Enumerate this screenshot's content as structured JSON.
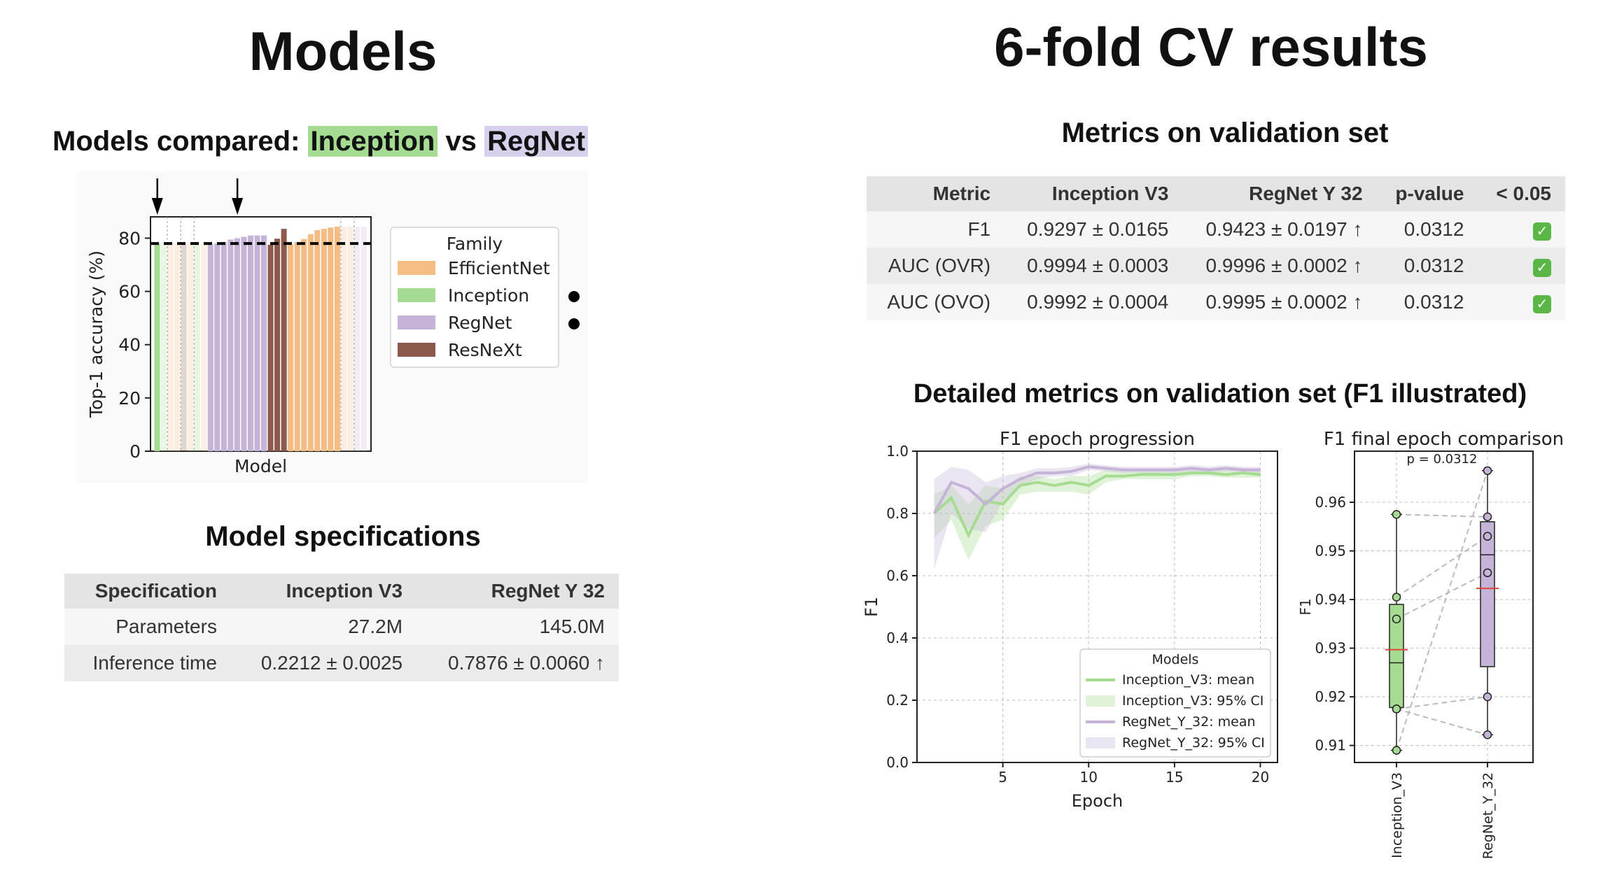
{
  "left": {
    "title": "Models",
    "compared": {
      "prefix": "Models compared:",
      "model_a": "Inception",
      "sep": "vs",
      "model_b": "RegNet"
    },
    "spec_title": "Model specifications",
    "spec_table": {
      "headers": [
        "Specification",
        "Inception V3",
        "RegNet Y 32"
      ],
      "rows": [
        [
          "Parameters",
          "27.2M",
          "145.0M"
        ],
        [
          "Inference time",
          "0.2212 ± 0.0025",
          "0.7876 ± 0.0060 ↑"
        ]
      ]
    }
  },
  "right": {
    "title": "6-fold CV results",
    "metrics_title": "Metrics on validation set",
    "metrics_table": {
      "headers": [
        "Metric",
        "Inception V3",
        "RegNet Y 32",
        "p-value",
        "< 0.05"
      ],
      "rows": [
        [
          "F1",
          "0.9297 ± 0.0165",
          "0.9423 ± 0.0197 ↑",
          "0.0312",
          "✓"
        ],
        [
          "AUC (OVR)",
          "0.9994 ± 0.0003",
          "0.9996 ± 0.0002 ↑",
          "0.0312",
          "✓"
        ],
        [
          "AUC (OVO)",
          "0.9992 ± 0.0004",
          "0.9995 ± 0.0002 ↑",
          "0.0312",
          "✓"
        ]
      ]
    },
    "detail_title": "Detailed metrics on validation set (F1 illustrated)"
  },
  "colors": {
    "EfficientNet": "#f5bd83",
    "Inception": "#a5dc92",
    "RegNet": "#c6b4d8",
    "ResNeXt": "#8c5a4c",
    "check_green": "#5ab645"
  },
  "chart_data": [
    {
      "type": "bar",
      "xlabel": "Model",
      "ylabel": "Top-1 accuracy (%)",
      "ylim": [
        0,
        88
      ],
      "yticks": [
        0,
        20,
        40,
        60,
        80
      ],
      "reference_line": 78,
      "legend": {
        "title": "Family",
        "entries": [
          "EfficientNet",
          "Inception",
          "RegNet",
          "ResNeXt"
        ],
        "placement": "right"
      },
      "bars": [
        {
          "family": "Inception",
          "value": 78,
          "faded": false
        },
        {
          "family": "Inception",
          "value": 78,
          "faded": true
        },
        {
          "family": "EfficientNet",
          "value": 78,
          "faded": true
        },
        {
          "family": "EfficientNet",
          "value": 78,
          "faded": true
        },
        {
          "family": "ResNeXt",
          "value": 78,
          "faded": true
        },
        {
          "family": "EfficientNet",
          "value": 78,
          "faded": true
        },
        {
          "family": "Inception",
          "value": 78,
          "faded": true
        },
        {
          "family": "EfficientNet",
          "value": 78,
          "faded": true
        },
        {
          "family": "RegNet",
          "value": 77.5,
          "faded": false
        },
        {
          "family": "RegNet",
          "value": 78,
          "faded": false
        },
        {
          "family": "RegNet",
          "value": 78.5,
          "faded": false
        },
        {
          "family": "RegNet",
          "value": 79.5,
          "faded": false
        },
        {
          "family": "RegNet",
          "value": 80,
          "faded": false
        },
        {
          "family": "RegNet",
          "value": 80.5,
          "faded": false
        },
        {
          "family": "RegNet",
          "value": 81,
          "faded": false
        },
        {
          "family": "RegNet",
          "value": 81,
          "faded": false
        },
        {
          "family": "RegNet",
          "value": 81,
          "faded": false
        },
        {
          "family": "ResNeXt",
          "value": 77.5,
          "faded": false
        },
        {
          "family": "ResNeXt",
          "value": 79.8,
          "faded": false
        },
        {
          "family": "ResNeXt",
          "value": 83.5,
          "faded": false
        },
        {
          "family": "EfficientNet",
          "value": 77.5,
          "faded": false
        },
        {
          "family": "EfficientNet",
          "value": 78.5,
          "faded": false
        },
        {
          "family": "EfficientNet",
          "value": 79.7,
          "faded": false
        },
        {
          "family": "EfficientNet",
          "value": 81.5,
          "faded": false
        },
        {
          "family": "EfficientNet",
          "value": 83,
          "faded": false
        },
        {
          "family": "EfficientNet",
          "value": 83.5,
          "faded": false
        },
        {
          "family": "EfficientNet",
          "value": 84,
          "faded": false
        },
        {
          "family": "EfficientNet",
          "value": 84.3,
          "faded": false
        },
        {
          "family": "EfficientNet",
          "value": 84.3,
          "faded": true
        },
        {
          "family": "EfficientNet",
          "value": 84.3,
          "faded": true
        },
        {
          "family": "RegNet",
          "value": 84.3,
          "faded": true
        },
        {
          "family": "RegNet",
          "value": 84.3,
          "faded": true
        }
      ],
      "highlighted_families": [
        "Inception",
        "RegNet"
      ]
    },
    {
      "type": "line",
      "title": "F1 epoch progression",
      "xlabel": "Epoch",
      "ylabel": "F1",
      "xlim": [
        0,
        21
      ],
      "ylim": [
        0,
        1.0
      ],
      "xticks": [
        5,
        10,
        15,
        20
      ],
      "yticks": [
        0.0,
        0.2,
        0.4,
        0.6,
        0.8,
        1.0
      ],
      "grid": true,
      "legend": {
        "title": "Models",
        "placement": "lower right",
        "entries": [
          "Inception_V3: mean",
          "Inception_V3: 95% CI",
          "RegNet_Y_32: mean",
          "RegNet_Y_32: 95% CI"
        ]
      },
      "x": [
        1,
        2,
        3,
        4,
        5,
        6,
        7,
        8,
        9,
        10,
        11,
        12,
        13,
        14,
        15,
        16,
        17,
        18,
        19,
        20
      ],
      "series": [
        {
          "name": "Inception_V3: mean",
          "values": [
            0.8,
            0.85,
            0.73,
            0.84,
            0.83,
            0.89,
            0.9,
            0.89,
            0.9,
            0.89,
            0.92,
            0.92,
            0.925,
            0.925,
            0.925,
            0.93,
            0.93,
            0.925,
            0.93,
            0.925
          ],
          "ci_low": [
            0.72,
            0.78,
            0.65,
            0.76,
            0.78,
            0.86,
            0.87,
            0.87,
            0.87,
            0.86,
            0.9,
            0.91,
            0.91,
            0.91,
            0.91,
            0.92,
            0.92,
            0.915,
            0.915,
            0.915
          ],
          "ci_high": [
            0.86,
            0.89,
            0.83,
            0.89,
            0.88,
            0.92,
            0.92,
            0.91,
            0.92,
            0.92,
            0.94,
            0.935,
            0.935,
            0.935,
            0.94,
            0.94,
            0.94,
            0.94,
            0.94,
            0.935
          ]
        },
        {
          "name": "RegNet_Y_32: mean",
          "values": [
            0.8,
            0.9,
            0.88,
            0.83,
            0.88,
            0.91,
            0.93,
            0.93,
            0.935,
            0.95,
            0.945,
            0.94,
            0.94,
            0.94,
            0.94,
            0.945,
            0.94,
            0.945,
            0.94,
            0.94
          ],
          "ci_low": [
            0.62,
            0.8,
            0.75,
            0.74,
            0.84,
            0.89,
            0.91,
            0.92,
            0.92,
            0.94,
            0.935,
            0.93,
            0.93,
            0.93,
            0.93,
            0.935,
            0.93,
            0.935,
            0.93,
            0.93
          ],
          "ci_high": [
            0.91,
            0.95,
            0.94,
            0.9,
            0.92,
            0.93,
            0.945,
            0.945,
            0.95,
            0.96,
            0.955,
            0.95,
            0.95,
            0.95,
            0.95,
            0.955,
            0.95,
            0.955,
            0.95,
            0.95
          ]
        }
      ]
    },
    {
      "type": "box",
      "title": "F1 final epoch comparison",
      "ylabel": "F1",
      "ylim": [
        0.9065,
        0.9705
      ],
      "yticks": [
        0.91,
        0.92,
        0.93,
        0.94,
        0.95,
        0.96
      ],
      "annotation": "p = 0.0312",
      "categories": [
        "Inception_V3",
        "RegNet_Y_32"
      ],
      "points": [
        [
          0.9575,
          0.9405,
          0.936,
          0.9175,
          0.9175,
          0.909
        ],
        [
          0.9665,
          0.957,
          0.953,
          0.9455,
          0.92,
          0.9122
        ]
      ],
      "pairs": [
        [
          0,
          1
        ],
        [
          1,
          2
        ],
        [
          2,
          3
        ],
        [
          3,
          4
        ],
        [
          4,
          5
        ],
        [
          5,
          0
        ]
      ],
      "boxes": [
        {
          "q1": 0.9178,
          "median": 0.927,
          "q3": 0.939,
          "whisker_low": 0.909,
          "whisker_high": 0.9575,
          "mean": 0.9297
        },
        {
          "q1": 0.9262,
          "median": 0.9492,
          "q3": 0.956,
          "whisker_low": 0.9122,
          "whisker_high": 0.9665,
          "mean": 0.9423
        }
      ]
    }
  ]
}
